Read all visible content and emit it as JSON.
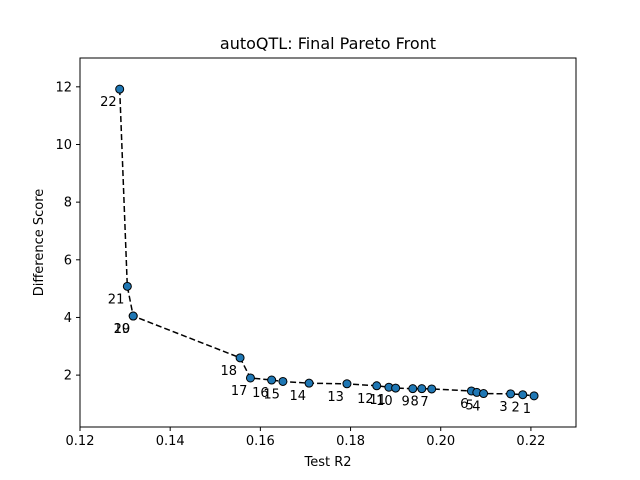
{
  "chart_data": {
    "type": "scatter",
    "title": "autoQTL: Final Pareto Front",
    "xlabel": "Test R2",
    "ylabel": "Difference Score",
    "xlim": [
      0.12,
      0.23
    ],
    "ylim": [
      0.2,
      13.0
    ],
    "xticks": [
      "0.12",
      "0.14",
      "0.16",
      "0.18",
      "0.20",
      "0.22"
    ],
    "xtick_values": [
      0.12,
      0.14,
      0.16,
      0.18,
      0.2,
      0.22
    ],
    "yticks": [
      "2",
      "4",
      "6",
      "8",
      "10",
      "12"
    ],
    "ytick_values": [
      2,
      4,
      6,
      8,
      10,
      12
    ],
    "marker_color": "#1f77b4",
    "line_color": "#000000",
    "line_style": "dashed",
    "points": [
      {
        "label": "22",
        "x": 0.1288,
        "y": 11.92
      },
      {
        "label": "21",
        "x": 0.1305,
        "y": 5.08
      },
      {
        "label": "20",
        "x": 0.1318,
        "y": 4.05
      },
      {
        "label": "19",
        "x": 0.1318,
        "y": 4.05
      },
      {
        "label": "18",
        "x": 0.1555,
        "y": 2.6
      },
      {
        "label": "17",
        "x": 0.1578,
        "y": 1.9
      },
      {
        "label": "16",
        "x": 0.1625,
        "y": 1.83
      },
      {
        "label": "15",
        "x": 0.165,
        "y": 1.78
      },
      {
        "label": "14",
        "x": 0.1708,
        "y": 1.72
      },
      {
        "label": "13",
        "x": 0.1792,
        "y": 1.7
      },
      {
        "label": "12",
        "x": 0.1858,
        "y": 1.63
      },
      {
        "label": "11",
        "x": 0.1885,
        "y": 1.58
      },
      {
        "label": "10",
        "x": 0.19,
        "y": 1.55
      },
      {
        "label": "9",
        "x": 0.1938,
        "y": 1.53
      },
      {
        "label": "8",
        "x": 0.1958,
        "y": 1.53
      },
      {
        "label": "7",
        "x": 0.198,
        "y": 1.52
      },
      {
        "label": "6",
        "x": 0.2068,
        "y": 1.45
      },
      {
        "label": "5",
        "x": 0.208,
        "y": 1.4
      },
      {
        "label": "4",
        "x": 0.2095,
        "y": 1.36
      },
      {
        "label": "3",
        "x": 0.2155,
        "y": 1.35
      },
      {
        "label": "2",
        "x": 0.2182,
        "y": 1.32
      },
      {
        "label": "1",
        "x": 0.2207,
        "y": 1.28
      }
    ],
    "grid": false,
    "legend": "none"
  }
}
